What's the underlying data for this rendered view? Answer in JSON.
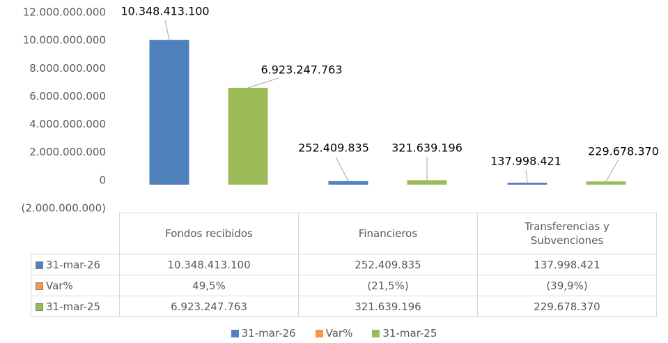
{
  "chart_data": {
    "type": "bar",
    "categories": [
      "Fondos recibidos",
      "Financieros",
      "Transferencias y Subvenciones"
    ],
    "series": [
      {
        "name": "31-mar-26",
        "color": "#4f81bd",
        "values": [
          10348413100,
          252409835,
          137998421
        ],
        "value_labels": [
          "10.348.413.100",
          "252.409.835",
          "137.998.421"
        ]
      },
      {
        "name": "Var%",
        "color": "#f79646",
        "values": [
          49.5,
          -21.5,
          -39.9
        ],
        "value_labels": [
          "49,5%",
          "(21,5%)",
          "(39,9%)"
        ]
      },
      {
        "name": "31-mar-25",
        "color": "#9bbb59",
        "values": [
          6923247763,
          321639196,
          229678370
        ],
        "value_labels": [
          "6.923.247.763",
          "321.639.196",
          "229.678.370"
        ]
      }
    ],
    "ylim": [
      -2000000000,
      12000000000
    ],
    "yticks": [
      {
        "value": -2000000000,
        "label": "(2.000.000.000)"
      },
      0,
      {
        "value": 2000000000,
        "label": "2.000.000.000"
      },
      {
        "value": 4000000000,
        "label": "4.000.000.000"
      },
      {
        "value": 6000000000,
        "label": "6.000.000.000"
      },
      {
        "value": 8000000000,
        "label": "8.000.000.000"
      },
      {
        "value": 10000000000,
        "label": "10.000.000.000"
      },
      {
        "value": 12000000000,
        "label": "12.000.000.000"
      }
    ],
    "legend": "bottom"
  }
}
